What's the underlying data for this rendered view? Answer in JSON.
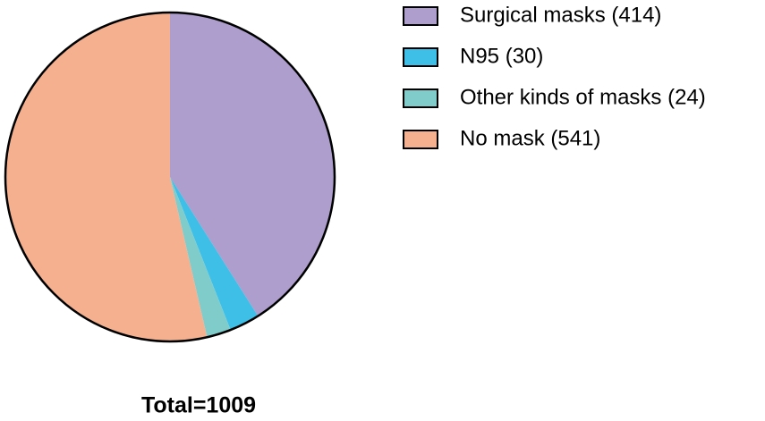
{
  "chart_data": {
    "type": "pie",
    "title": "Total=1009",
    "categories": [
      "Surgical masks (414)",
      "N95 (30)",
      "Other kinds of masks (24)",
      "No mask (541)"
    ],
    "values": [
      414,
      30,
      24,
      541
    ],
    "colors": [
      "#ae9ecd",
      "#3dbfe8",
      "#7fcccb",
      "#f4b08f"
    ],
    "legend": "top-right"
  }
}
